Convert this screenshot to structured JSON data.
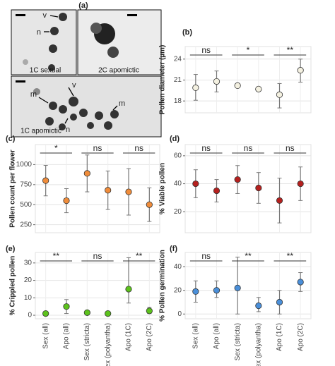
{
  "micrographs": {
    "panel": "(a)",
    "images": [
      {
        "caption": "1C sexual",
        "labels": [
          "v",
          "n"
        ]
      },
      {
        "caption": "2C apomictic",
        "labels": []
      },
      {
        "caption": "1C apomictic",
        "labels": [
          "v",
          "m",
          "m",
          "n"
        ]
      }
    ]
  },
  "chart_data": [
    {
      "type": "dot",
      "panel": "(b)",
      "ylabel": "Pollen diameter (µm)",
      "color": "#f4f1e1",
      "categories": [
        null,
        null,
        null,
        null,
        null,
        null
      ],
      "values": [
        19.9,
        20.8,
        20.2,
        19.7,
        18.9,
        22.4
      ],
      "lower": [
        18.1,
        19.3,
        19.9,
        19.5,
        17.0,
        20.7
      ],
      "upper": [
        21.8,
        22.3,
        20.5,
        19.9,
        20.5,
        24.0
      ],
      "significance": [
        "ns",
        "*",
        "**"
      ],
      "ylim": [
        16.3,
        25.8
      ],
      "yticks": [
        18,
        21,
        24
      ],
      "grid": true
    },
    {
      "type": "dot",
      "panel": "(c)",
      "ylabel": "Pollen count per flower",
      "color": "#f08c3a",
      "categories": [
        null,
        null,
        null,
        null,
        null,
        null
      ],
      "values": [
        800,
        550,
        890,
        680,
        660,
        500
      ],
      "lower": [
        610,
        400,
        660,
        440,
        370,
        290
      ],
      "upper": [
        990,
        700,
        1120,
        920,
        950,
        710
      ],
      "significance": [
        "*",
        "ns",
        "ns"
      ],
      "ylim": [
        150,
        1250
      ],
      "yticks": [
        250,
        500,
        750,
        1000
      ],
      "grid": true
    },
    {
      "type": "dot",
      "panel": "(d)",
      "ylabel": "% Viable pollen",
      "color": "#b5201e",
      "categories": [
        null,
        null,
        null,
        null,
        null,
        null
      ],
      "values": [
        40,
        35,
        43,
        37,
        28,
        40
      ],
      "lower": [
        30,
        27,
        33,
        26,
        12,
        28
      ],
      "upper": [
        50,
        43,
        53,
        48,
        44,
        52
      ],
      "significance": [
        "ns",
        "ns",
        "ns"
      ],
      "ylim": [
        5,
        68
      ],
      "yticks": [
        20,
        40,
        60
      ],
      "grid": true
    },
    {
      "type": "dot",
      "panel": "(e)",
      "ylabel": "% Crippled pollen",
      "color": "#5cc21c",
      "categories": [
        "Sex (all)",
        "Apo (all)",
        "Sex (stricta)",
        "Sex (polyantha)",
        "Apo (1C)",
        "Apo (2C)"
      ],
      "values": [
        1,
        5,
        1.5,
        1,
        15,
        2.5
      ],
      "lower": [
        0,
        1,
        0.7,
        0.5,
        7,
        1
      ],
      "upper": [
        2,
        9,
        2.3,
        1.5,
        33,
        4.5
      ],
      "significance": [
        "**",
        "ns",
        "**"
      ],
      "ylim": [
        -2,
        36
      ],
      "yticks": [
        0,
        10,
        20,
        30
      ],
      "grid": true
    },
    {
      "type": "dot",
      "panel": "(f)",
      "ylabel": "% Pollen germination",
      "color": "#4a8fd9",
      "categories": [
        "Sex (all)",
        "Apo (all)",
        "Sex (stricta)",
        "Sex (polyantha)",
        "Apo (1C)",
        "Apo (2C)"
      ],
      "values": [
        19,
        20,
        22,
        7,
        10,
        27
      ],
      "lower": [
        10,
        14,
        0,
        2,
        0,
        19
      ],
      "upper": [
        28,
        28,
        48,
        14,
        20,
        35
      ],
      "significance": [
        "ns",
        "**",
        "**"
      ],
      "ylim": [
        -4,
        52
      ],
      "yticks": [
        0,
        20,
        40
      ],
      "grid": true
    }
  ]
}
